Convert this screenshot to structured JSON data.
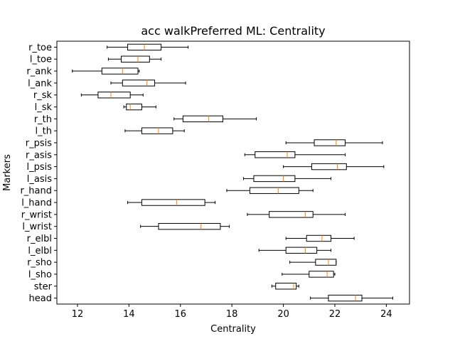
{
  "chart_data": {
    "type": "boxplot",
    "orientation": "horizontal",
    "title": "acc walkPreferred ML: Centrality",
    "xlabel": "Centrality",
    "ylabel": "Markers",
    "xlim": [
      11.2,
      24.9
    ],
    "xticks": [
      12,
      14,
      16,
      18,
      20,
      22,
      24
    ],
    "grid": false,
    "colors": {
      "box": "#000000",
      "median": "#ff7f0e",
      "background": "#ffffff"
    },
    "categories": [
      "head",
      "ster",
      "l_sho",
      "r_sho",
      "l_elbl",
      "r_elbl",
      "l_wrist",
      "r_wrist",
      "l_hand",
      "r_hand",
      "l_asis",
      "l_psis",
      "r_asis",
      "r_psis",
      "l_th",
      "r_th",
      "l_sk",
      "r_sk",
      "l_ank",
      "r_ank",
      "l_toe",
      "r_toe"
    ],
    "boxes": [
      {
        "label": "head",
        "whislo": 21.05,
        "q1": 21.75,
        "med": 22.8,
        "q3": 23.05,
        "whishi": 24.25
      },
      {
        "label": "ster",
        "whislo": 19.55,
        "q1": 19.7,
        "med": 20.4,
        "q3": 20.5,
        "whishi": 20.6
      },
      {
        "label": "l_sho",
        "whislo": 19.95,
        "q1": 21.0,
        "med": 21.7,
        "q3": 21.95,
        "whishi": 22.0
      },
      {
        "label": "r_sho",
        "whislo": 20.25,
        "q1": 21.25,
        "med": 21.75,
        "q3": 22.05,
        "whishi": 22.05
      },
      {
        "label": "l_elbl",
        "whislo": 19.05,
        "q1": 20.1,
        "med": 20.85,
        "q3": 21.3,
        "whishi": 21.85
      },
      {
        "label": "r_elbl",
        "whislo": 20.1,
        "q1": 20.9,
        "med": 21.5,
        "q3": 21.85,
        "whishi": 22.75
      },
      {
        "label": "l_wrist",
        "whislo": 14.45,
        "q1": 15.15,
        "med": 16.8,
        "q3": 17.55,
        "whishi": 17.9
      },
      {
        "label": "r_wrist",
        "whislo": 18.6,
        "q1": 19.45,
        "med": 20.85,
        "q3": 21.15,
        "whishi": 22.4
      },
      {
        "label": "l_hand",
        "whislo": 13.95,
        "q1": 14.5,
        "med": 15.85,
        "q3": 16.95,
        "whishi": 17.35
      },
      {
        "label": "r_hand",
        "whislo": 17.8,
        "q1": 18.7,
        "med": 19.8,
        "q3": 20.6,
        "whishi": 21.15
      },
      {
        "label": "l_asis",
        "whislo": 18.45,
        "q1": 18.85,
        "med": 20.0,
        "q3": 20.45,
        "whishi": 21.85
      },
      {
        "label": "l_psis",
        "whislo": 20.0,
        "q1": 21.1,
        "med": 22.1,
        "q3": 22.45,
        "whishi": 23.9
      },
      {
        "label": "r_asis",
        "whislo": 18.5,
        "q1": 18.9,
        "med": 20.15,
        "q3": 20.45,
        "whishi": 22.4
      },
      {
        "label": "r_psis",
        "whislo": 20.1,
        "q1": 21.2,
        "med": 22.05,
        "q3": 22.4,
        "whishi": 23.85
      },
      {
        "label": "l_th",
        "whislo": 13.85,
        "q1": 14.5,
        "med": 15.15,
        "q3": 15.7,
        "whishi": 16.15
      },
      {
        "label": "r_th",
        "whislo": 15.75,
        "q1": 16.1,
        "med": 17.1,
        "q3": 17.65,
        "whishi": 18.95
      },
      {
        "label": "l_sk",
        "whislo": 13.8,
        "q1": 13.9,
        "med": 14.05,
        "q3": 14.5,
        "whishi": 15.05
      },
      {
        "label": "r_sk",
        "whislo": 12.15,
        "q1": 12.8,
        "med": 13.3,
        "q3": 14.05,
        "whishi": 14.55
      },
      {
        "label": "l_ank",
        "whislo": 13.3,
        "q1": 13.75,
        "med": 14.7,
        "q3": 15.0,
        "whishi": 16.2
      },
      {
        "label": "r_ank",
        "whislo": 11.8,
        "q1": 12.95,
        "med": 13.75,
        "q3": 14.35,
        "whishi": 14.4
      },
      {
        "label": "l_toe",
        "whislo": 13.2,
        "q1": 13.7,
        "med": 14.35,
        "q3": 14.8,
        "whishi": 15.25
      },
      {
        "label": "r_toe",
        "whislo": 13.15,
        "q1": 13.95,
        "med": 14.6,
        "q3": 15.25,
        "whishi": 16.3
      }
    ]
  }
}
